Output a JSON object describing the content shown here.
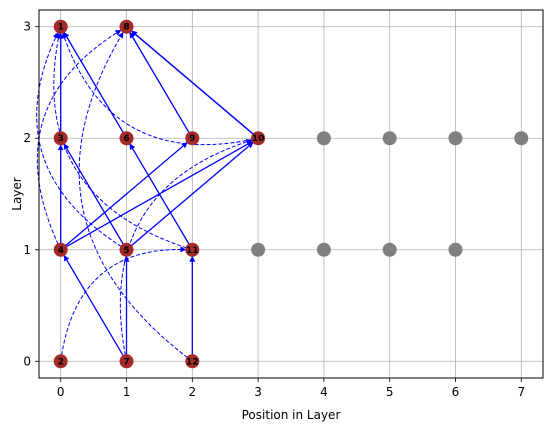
{
  "chart_data": {
    "type": "scatter",
    "title": "",
    "xlabel": "Position in Layer",
    "ylabel": "Layer",
    "xlim": [
      -0.33,
      7.33
    ],
    "ylim": [
      -0.15,
      3.15
    ],
    "x_ticks": [
      "0",
      "1",
      "2",
      "3",
      "4",
      "5",
      "6",
      "7"
    ],
    "y_ticks": [
      "0",
      "1",
      "2",
      "3"
    ],
    "grid": true,
    "active_color": "#a52a2a",
    "inactive_color": "#808080",
    "edge_color": "#0000ff",
    "nodes": [
      {
        "label": "2",
        "x": 0,
        "y": 0,
        "active": true
      },
      {
        "label": "7",
        "x": 1,
        "y": 0,
        "active": true
      },
      {
        "label": "12",
        "x": 2,
        "y": 0,
        "active": true
      },
      {
        "label": "4",
        "x": 0,
        "y": 1,
        "active": true
      },
      {
        "label": "5",
        "x": 1,
        "y": 1,
        "active": true
      },
      {
        "label": "11",
        "x": 2,
        "y": 1,
        "active": true
      },
      {
        "label": "",
        "x": 3,
        "y": 1,
        "active": false
      },
      {
        "label": "",
        "x": 4,
        "y": 1,
        "active": false
      },
      {
        "label": "",
        "x": 5,
        "y": 1,
        "active": false
      },
      {
        "label": "",
        "x": 6,
        "y": 1,
        "active": false
      },
      {
        "label": "3",
        "x": 0,
        "y": 2,
        "active": true
      },
      {
        "label": "6",
        "x": 1,
        "y": 2,
        "active": true
      },
      {
        "label": "9",
        "x": 2,
        "y": 2,
        "active": true
      },
      {
        "label": "10",
        "x": 3,
        "y": 2,
        "active": true
      },
      {
        "label": "",
        "x": 4,
        "y": 2,
        "active": false
      },
      {
        "label": "",
        "x": 5,
        "y": 2,
        "active": false
      },
      {
        "label": "",
        "x": 6,
        "y": 2,
        "active": false
      },
      {
        "label": "",
        "x": 7,
        "y": 2,
        "active": false
      },
      {
        "label": "1",
        "x": 0,
        "y": 3,
        "active": true
      },
      {
        "label": "8",
        "x": 1,
        "y": 3,
        "active": true
      }
    ],
    "solid_edges": [
      {
        "from": [
          1,
          0
        ],
        "to": [
          0,
          1
        ]
      },
      {
        "from": [
          1,
          0
        ],
        "to": [
          1,
          1
        ]
      },
      {
        "from": [
          2,
          0
        ],
        "to": [
          2,
          1
        ]
      },
      {
        "from": [
          0,
          1
        ],
        "to": [
          0,
          2
        ]
      },
      {
        "from": [
          0,
          1
        ],
        "to": [
          2,
          2
        ]
      },
      {
        "from": [
          0,
          1
        ],
        "to": [
          3,
          2
        ]
      },
      {
        "from": [
          1,
          1
        ],
        "to": [
          3,
          2
        ]
      },
      {
        "from": [
          2,
          1
        ],
        "to": [
          1,
          2
        ]
      },
      {
        "from": [
          1,
          1
        ],
        "to": [
          0,
          2
        ]
      },
      {
        "from": [
          0,
          2
        ],
        "to": [
          0,
          3
        ]
      },
      {
        "from": [
          1,
          2
        ],
        "to": [
          0,
          3
        ]
      },
      {
        "from": [
          2,
          2
        ],
        "to": [
          1,
          3
        ]
      },
      {
        "from": [
          3,
          2
        ],
        "to": [
          1,
          3
        ]
      },
      {
        "from": [
          3,
          2
        ],
        "to": [
          1,
          3
        ]
      }
    ],
    "dashed_edges": [
      {
        "from": [
          0,
          0
        ],
        "to": [
          2,
          1
        ]
      },
      {
        "from": [
          1,
          0
        ],
        "to": [
          3,
          2
        ]
      },
      {
        "from": [
          2,
          0
        ],
        "to": [
          1,
          3
        ]
      },
      {
        "from": [
          0,
          1
        ],
        "to": [
          1,
          3
        ]
      },
      {
        "from": [
          1,
          1
        ],
        "to": [
          0,
          3
        ]
      },
      {
        "from": [
          2,
          1
        ],
        "to": [
          0,
          3
        ]
      },
      {
        "from": [
          3,
          2
        ],
        "to": [
          0,
          3
        ]
      }
    ]
  }
}
